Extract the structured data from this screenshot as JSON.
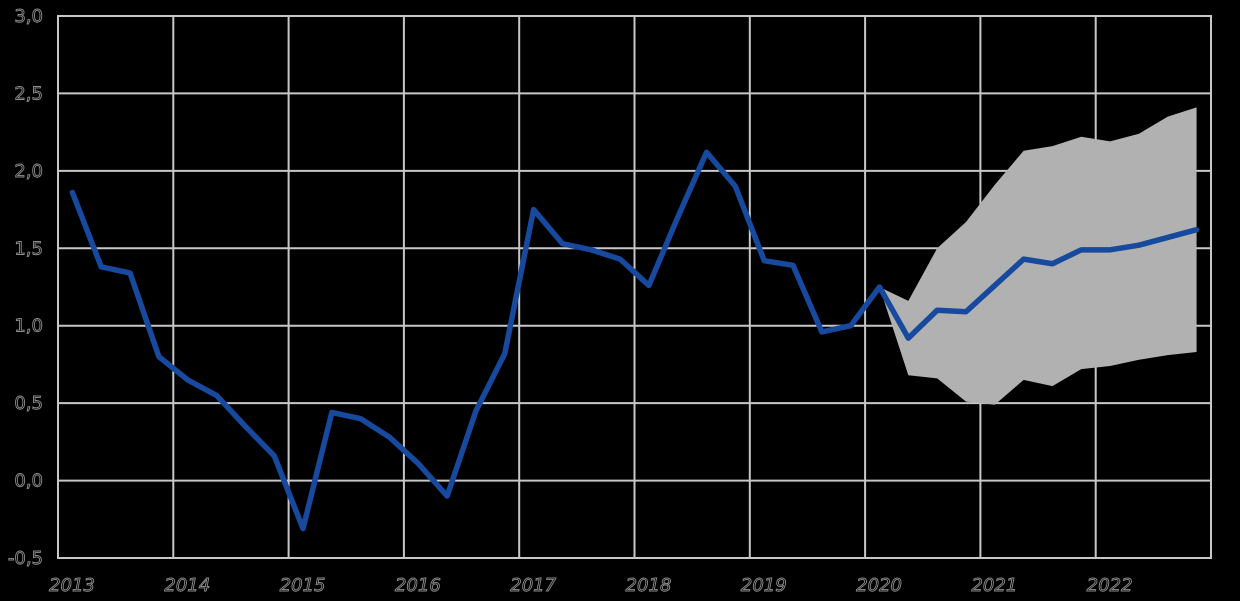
{
  "chart_data": {
    "type": "line",
    "title": "",
    "x_tick_labels": [
      "2013",
      "2014",
      "2015",
      "2016",
      "2017",
      "2018",
      "2019",
      "2020",
      "2021",
      "2022"
    ],
    "y_tick_labels": [
      "3,0",
      "2,5",
      "2,0",
      "1,5",
      "1,0",
      "0,5",
      "0,0",
      "-0,5"
    ],
    "y_tick_values": [
      3.0,
      2.5,
      2.0,
      1.5,
      1.0,
      0.5,
      0.0,
      -0.5
    ],
    "ylim": [
      -0.5,
      3.0
    ],
    "grid": true,
    "legend_position": "none",
    "background_color": "#000000",
    "gridline_color": "#c7c7c7",
    "tick_label_outline_color": "#8e8e8e",
    "periods": [
      "2013 Q1",
      "2013 Q2",
      "2013 Q3",
      "2013 Q4",
      "2014 Q1",
      "2014 Q2",
      "2014 Q3",
      "2014 Q4",
      "2015 Q1",
      "2015 Q2",
      "2015 Q3",
      "2015 Q4",
      "2016 Q1",
      "2016 Q2",
      "2016 Q3",
      "2016 Q4",
      "2017 Q1",
      "2017 Q2",
      "2017 Q3",
      "2017 Q4",
      "2018 Q1",
      "2018 Q2",
      "2018 Q3",
      "2018 Q4",
      "2019 Q1",
      "2019 Q2",
      "2019 Q3",
      "2019 Q4",
      "2020 Q1",
      "2020 Q2",
      "2020 Q3",
      "2020 Q4",
      "2021 Q1",
      "2021 Q2",
      "2021 Q3",
      "2021 Q4",
      "2022 Q1",
      "2022 Q2",
      "2022 Q3",
      "2022 Q4"
    ],
    "series": [
      {
        "name": "quarterly-indicator-with-central-forecast",
        "color": "#17499e",
        "values": [
          1.86,
          1.38,
          1.34,
          0.8,
          0.65,
          0.55,
          0.35,
          0.16,
          -0.31,
          0.44,
          0.4,
          0.28,
          0.11,
          -0.1,
          0.45,
          0.82,
          1.75,
          1.53,
          1.49,
          1.43,
          1.26,
          1.7,
          2.12,
          1.9,
          1.42,
          1.39,
          0.96,
          1.0,
          1.25,
          0.92,
          1.1,
          1.09,
          1.26,
          1.43,
          1.4,
          1.49,
          1.49,
          1.52,
          1.57,
          1.62
        ]
      }
    ],
    "forecast_band": {
      "name": "forecast-uncertainty-band",
      "color": "#b1b1b1",
      "start_index": 28,
      "upper": [
        1.25,
        1.16,
        1.5,
        1.67,
        1.91,
        2.13,
        2.16,
        2.22,
        2.19,
        2.24,
        2.35,
        2.41
      ],
      "lower": [
        1.25,
        0.68,
        0.66,
        0.51,
        0.49,
        0.65,
        0.61,
        0.72,
        0.74,
        0.78,
        0.81,
        0.83
      ]
    }
  }
}
